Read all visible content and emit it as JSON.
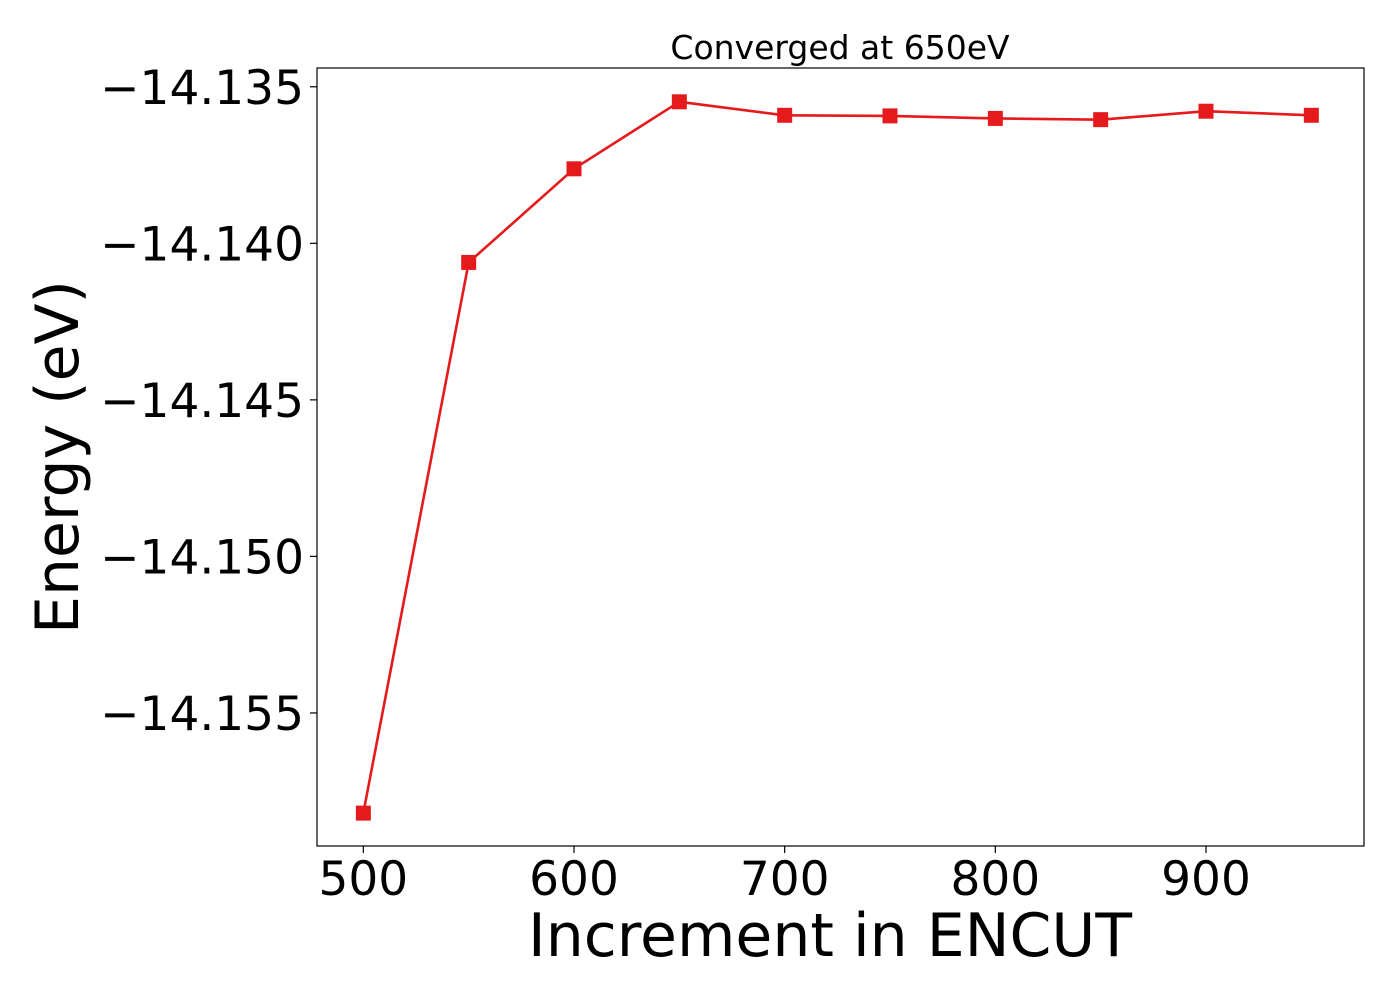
{
  "chart_data": {
    "type": "line",
    "title": "Converged at 650eV",
    "xlabel": "Increment in ENCUT",
    "ylabel": "Energy (eV)",
    "x": [
      500,
      550,
      600,
      650,
      700,
      750,
      800,
      850,
      900,
      950
    ],
    "series": [
      {
        "values": [
          -14.1582,
          -14.14061,
          -14.13762,
          -14.13548,
          -14.13591,
          -14.13593,
          -14.13601,
          -14.13605,
          -14.13578,
          -14.13591
        ],
        "color": "#e41a1c",
        "marker": "square"
      }
    ],
    "xlim": [
      478,
      975
    ],
    "ylim": [
      -14.15925,
      -14.1344
    ],
    "xticks": [
      500,
      600,
      700,
      800,
      900
    ],
    "xtick_labels": [
      "500",
      "600",
      "700",
      "800",
      "900"
    ],
    "yticks": [
      -14.135,
      -14.14,
      -14.145,
      -14.15,
      -14.155
    ],
    "ytick_labels": [
      "−14.135",
      "−14.140",
      "−14.145",
      "−14.150",
      "−14.155"
    ],
    "grid": false,
    "legend": "none"
  }
}
